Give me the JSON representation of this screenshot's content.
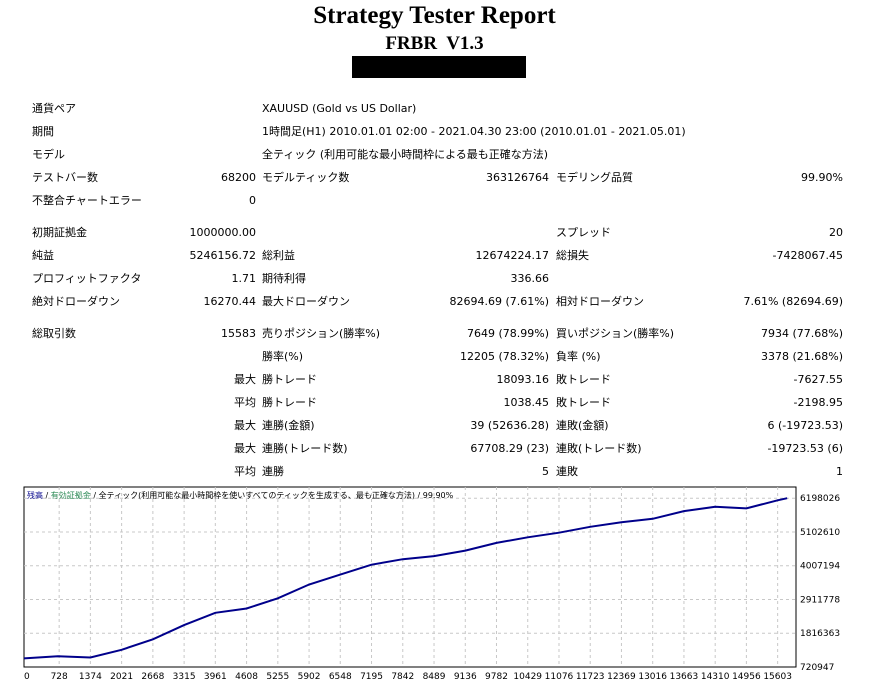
{
  "header": {
    "title": "Strategy Tester Report",
    "subtitle": "FRBR  V1.3"
  },
  "summary": {
    "symbol_label": "通貨ペア",
    "symbol_value": "XAUUSD (Gold vs US Dollar)",
    "period_label": "期間",
    "period_value": "1時間足(H1) 2010.01.01 02:00 - 2021.04.30 23:00 (2010.01.01 - 2021.05.01)",
    "model_label": "モデル",
    "model_value": "全ティック (利用可能な最小時間枠による最も正確な方法)",
    "bars_label": "テストバー数",
    "bars_value": "68200",
    "ticks_label": "モデルティック数",
    "ticks_value": "363126764",
    "quality_label": "モデリング品質",
    "quality_value": "99.90%",
    "errors_label": "不整合チャートエラー",
    "errors_value": "0"
  },
  "results": {
    "deposit_label": "初期証拠金",
    "deposit_value": "1000000.00",
    "spread_label": "スプレッド",
    "spread_value": "20",
    "net_label": "純益",
    "net_value": "5246156.72",
    "gross_profit_label": "総利益",
    "gross_profit_value": "12674224.17",
    "gross_loss_label": "総損失",
    "gross_loss_value": "-7428067.45",
    "pf_label": "プロフィットファクタ",
    "pf_value": "1.71",
    "expected_label": "期待利得",
    "expected_value": "336.66",
    "abs_dd_label": "絶対ドローダウン",
    "abs_dd_value": "16270.44",
    "max_dd_label": "最大ドローダウン",
    "max_dd_value": "82694.69 (7.61%)",
    "rel_dd_label": "相対ドローダウン",
    "rel_dd_value": "7.61% (82694.69)",
    "total_trades_label": "総取引数",
    "total_trades_value": "15583",
    "short_label": "売りポジション(勝率%)",
    "short_value": "7649 (78.99%)",
    "long_label": "買いポジション(勝率%)",
    "long_value": "7934 (77.68%)",
    "win_rate_label": "勝率(%)",
    "win_rate_value": "12205 (78.32%)",
    "loss_rate_label": "負率 (%)",
    "loss_rate_value": "3378 (21.68%)",
    "largest_label": "最大",
    "largest_win_label": "勝トレード",
    "largest_win_value": "18093.16",
    "largest_loss_label": "敗トレード",
    "largest_loss_value": "-7627.55",
    "average_label": "平均",
    "avg_win_label": "勝トレード",
    "avg_win_value": "1038.45",
    "avg_loss_label": "敗トレード",
    "avg_loss_value": "-2198.95",
    "max_consec_label": "最大",
    "max_consec_wins_label": "連勝(金額)",
    "max_consec_wins_value": "39 (52636.28)",
    "max_consec_losses_label": "連敗(金額)",
    "max_consec_losses_value": "6 (-19723.53)",
    "max_consec2_label": "最大",
    "max_consec_profit_label": "連勝(トレード数)",
    "max_consec_profit_value": "67708.29 (23)",
    "max_consec_loss_label": "連敗(トレード数)",
    "max_consec_loss_value": "-19723.53 (6)",
    "avg_consec_label": "平均",
    "avg_consec_wins_label": "連勝",
    "avg_consec_wins_value": "5",
    "avg_consec_losses_label": "連敗",
    "avg_consec_losses_value": "1"
  },
  "chart_data": {
    "type": "line",
    "legend_balance": "残高",
    "legend_sep": " / ",
    "legend_equity": "有効証拠金",
    "legend_model": " / 全ティック(利用可能な最小時間枠を使いすべてのティックを生成する、最も正確な方法) / 99.90%",
    "balance_color": "#00008b",
    "equity_color": "#2e8b57",
    "grid": true,
    "xlim": [
      0,
      15983
    ],
    "ylim": [
      720947,
      6563000
    ],
    "x_ticks": [
      "0",
      "728",
      "1374",
      "2021",
      "2668",
      "3315",
      "3961",
      "4608",
      "5255",
      "5902",
      "6548",
      "7195",
      "7842",
      "8489",
      "9136",
      "9782",
      "10429",
      "11076",
      "11723",
      "12369",
      "13016",
      "13663",
      "14310",
      "14956",
      "15603"
    ],
    "y_ticks": [
      "720947",
      "1816363",
      "2911778",
      "4007194",
      "5102610",
      "6198026"
    ],
    "series": [
      {
        "name": "残高",
        "x": [
          0,
          700,
          1374,
          2021,
          2668,
          3315,
          3961,
          4608,
          5255,
          5902,
          6548,
          7195,
          7842,
          8489,
          9136,
          9782,
          10429,
          11076,
          11723,
          12369,
          13016,
          13663,
          14310,
          14956,
          15603,
          15800
        ],
        "values": [
          1000000,
          1070000,
          1030000,
          1280000,
          1620000,
          2080000,
          2480000,
          2620000,
          2950000,
          3400000,
          3720000,
          4040000,
          4220000,
          4320000,
          4500000,
          4750000,
          4930000,
          5080000,
          5270000,
          5420000,
          5530000,
          5780000,
          5920000,
          5870000,
          6130000,
          6198026
        ]
      }
    ]
  }
}
